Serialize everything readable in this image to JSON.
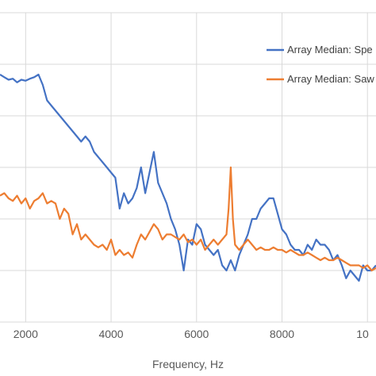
{
  "chart_data": {
    "type": "line",
    "xlabel": "Frequency, Hz",
    "ylabel": "",
    "xlim": [
      1400,
      10200
    ],
    "ylim": [
      0,
      6
    ],
    "x_ticks": [
      2000,
      4000,
      6000,
      8000,
      "10"
    ],
    "grid": true,
    "legend": "top-right",
    "series": [
      {
        "name": "Array Median: Spe",
        "color": "#4472C4",
        "x": [
          1400,
          1500,
          1600,
          1700,
          1800,
          1900,
          2000,
          2100,
          2200,
          2300,
          2400,
          2500,
          2600,
          2700,
          2800,
          2900,
          3000,
          3100,
          3200,
          3300,
          3400,
          3500,
          3600,
          3700,
          3800,
          3900,
          4000,
          4100,
          4200,
          4300,
          4400,
          4500,
          4600,
          4700,
          4800,
          4900,
          5000,
          5100,
          5200,
          5300,
          5400,
          5500,
          5600,
          5700,
          5800,
          5900,
          6000,
          6100,
          6200,
          6300,
          6400,
          6500,
          6600,
          6700,
          6800,
          6900,
          7000,
          7100,
          7200,
          7300,
          7400,
          7500,
          7600,
          7700,
          7800,
          7900,
          8000,
          8100,
          8200,
          8300,
          8400,
          8500,
          8600,
          8700,
          8800,
          8900,
          9000,
          9100,
          9200,
          9300,
          9400,
          9500,
          9600,
          9700,
          9800,
          9900,
          10000,
          10100,
          10200
        ],
        "y": [
          4.8,
          4.75,
          4.7,
          4.72,
          4.65,
          4.7,
          4.68,
          4.72,
          4.75,
          4.8,
          4.6,
          4.3,
          4.2,
          4.1,
          4.0,
          3.9,
          3.8,
          3.7,
          3.6,
          3.5,
          3.6,
          3.5,
          3.3,
          3.2,
          3.1,
          3.0,
          2.9,
          2.8,
          2.2,
          2.5,
          2.3,
          2.4,
          2.6,
          3.0,
          2.5,
          2.9,
          3.3,
          2.7,
          2.5,
          2.3,
          2.0,
          1.8,
          1.5,
          1.0,
          1.6,
          1.5,
          1.9,
          1.8,
          1.5,
          1.4,
          1.3,
          1.4,
          1.1,
          1.0,
          1.2,
          1.0,
          1.3,
          1.5,
          1.7,
          2.0,
          2.0,
          2.2,
          2.3,
          2.4,
          2.4,
          2.1,
          1.8,
          1.7,
          1.5,
          1.4,
          1.4,
          1.3,
          1.5,
          1.4,
          1.6,
          1.5,
          1.5,
          1.4,
          1.2,
          1.3,
          1.1,
          0.85,
          1.0,
          0.9,
          0.8,
          1.1,
          1.0,
          1.0,
          1.1
        ]
      },
      {
        "name": "Array Median: Saw",
        "color": "#ED7D31",
        "x": [
          1400,
          1500,
          1600,
          1700,
          1800,
          1900,
          2000,
          2100,
          2200,
          2300,
          2400,
          2500,
          2600,
          2700,
          2800,
          2900,
          3000,
          3100,
          3200,
          3300,
          3400,
          3500,
          3600,
          3700,
          3800,
          3900,
          4000,
          4100,
          4200,
          4300,
          4400,
          4500,
          4600,
          4700,
          4800,
          4900,
          5000,
          5100,
          5200,
          5300,
          5400,
          5500,
          5600,
          5700,
          5800,
          5900,
          6000,
          6100,
          6200,
          6300,
          6400,
          6500,
          6600,
          6700,
          6750,
          6800,
          6850,
          6900,
          7000,
          7100,
          7200,
          7300,
          7400,
          7500,
          7600,
          7700,
          7800,
          7900,
          8000,
          8100,
          8200,
          8300,
          8400,
          8500,
          8600,
          8700,
          8800,
          8900,
          9000,
          9100,
          9200,
          9300,
          9400,
          9500,
          9600,
          9700,
          9800,
          9900,
          10000,
          10100,
          10200
        ],
        "y": [
          2.45,
          2.5,
          2.4,
          2.35,
          2.45,
          2.3,
          2.4,
          2.2,
          2.35,
          2.4,
          2.5,
          2.3,
          2.35,
          2.3,
          2.0,
          2.2,
          2.1,
          1.7,
          1.9,
          1.6,
          1.7,
          1.6,
          1.5,
          1.45,
          1.5,
          1.4,
          1.6,
          1.3,
          1.4,
          1.3,
          1.35,
          1.25,
          1.5,
          1.7,
          1.6,
          1.75,
          1.9,
          1.8,
          1.6,
          1.7,
          1.7,
          1.65,
          1.6,
          1.7,
          1.55,
          1.6,
          1.5,
          1.6,
          1.4,
          1.5,
          1.6,
          1.5,
          1.6,
          1.7,
          2.2,
          3.0,
          2.0,
          1.5,
          1.4,
          1.5,
          1.6,
          1.5,
          1.4,
          1.45,
          1.4,
          1.4,
          1.45,
          1.4,
          1.4,
          1.35,
          1.4,
          1.35,
          1.3,
          1.3,
          1.35,
          1.3,
          1.25,
          1.2,
          1.25,
          1.2,
          1.2,
          1.25,
          1.2,
          1.15,
          1.1,
          1.1,
          1.1,
          1.05,
          1.1,
          1.0,
          1.05
        ]
      }
    ]
  }
}
